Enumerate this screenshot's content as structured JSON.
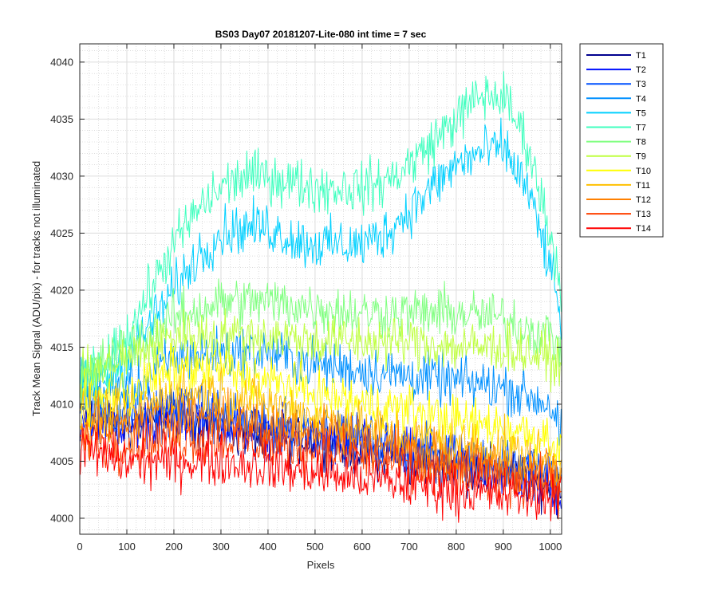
{
  "chart_data": {
    "type": "line",
    "title": "BS03 Day07 20181207-Lite-080 int time = 7 sec",
    "xlabel": "Pixels",
    "ylabel": "Track Mean Signal (ADU/pix) - for tracks not illuminated",
    "xlim": [
      0,
      1024
    ],
    "ylim": [
      3998.6,
      4041.6
    ],
    "xticks": [
      0,
      100,
      200,
      300,
      400,
      500,
      600,
      700,
      800,
      900,
      1000
    ],
    "yticks": [
      4000,
      4005,
      4010,
      4015,
      4020,
      4025,
      4030,
      4035,
      4040
    ],
    "grid": true,
    "minor_grid": true,
    "legend_position": "outside-right",
    "series": [
      {
        "name": "T1",
        "color": "#00008f",
        "x": [
          0,
          100,
          200,
          300,
          400,
          500,
          600,
          700,
          800,
          900,
          1000,
          1024
        ],
        "values": [
          4009,
          4008,
          4009,
          4008,
          4007,
          4007,
          4006,
          4005,
          4004.5,
          4004,
          4003,
          4002
        ]
      },
      {
        "name": "T2",
        "color": "#0010ff",
        "x": [
          0,
          100,
          200,
          300,
          400,
          500,
          600,
          700,
          800,
          900,
          1000,
          1024
        ],
        "values": [
          4009,
          4008,
          4009,
          4008.5,
          4007.5,
          4007,
          4006.5,
          4005.5,
          4005,
          4004,
          4003,
          4002
        ]
      },
      {
        "name": "T3",
        "color": "#0050ff",
        "x": [
          0,
          100,
          200,
          300,
          400,
          500,
          600,
          700,
          800,
          900,
          1000,
          1024
        ],
        "values": [
          4010,
          4009,
          4010,
          4009,
          4008,
          4008,
          4007,
          4006,
          4005.5,
          4005,
          4004,
          4003
        ]
      },
      {
        "name": "T4",
        "color": "#0090ff",
        "x": [
          0,
          100,
          200,
          300,
          400,
          500,
          600,
          700,
          800,
          900,
          1000,
          1024
        ],
        "values": [
          4011,
          4011,
          4014,
          4014.5,
          4014.5,
          4013.5,
          4013,
          4012.5,
          4012,
          4011.5,
          4010,
          4007
        ]
      },
      {
        "name": "T5",
        "color": "#00d0ff",
        "x": [
          0,
          50,
          100,
          150,
          200,
          250,
          300,
          350,
          400,
          450,
          500,
          550,
          600,
          650,
          700,
          750,
          800,
          850,
          900,
          950,
          1000,
          1024
        ],
        "values": [
          4012,
          4012,
          4014,
          4017,
          4020,
          4023,
          4025,
          4025.5,
          4025.5,
          4024.5,
          4024,
          4024,
          4024,
          4025,
          4027,
          4029,
          4031,
          4032,
          4032.5,
          4029,
          4022,
          4017
        ]
      },
      {
        "name": "T7",
        "color": "#40ffbf",
        "x": [
          0,
          50,
          100,
          150,
          200,
          250,
          300,
          350,
          400,
          450,
          500,
          550,
          600,
          650,
          700,
          750,
          800,
          850,
          900,
          950,
          1000,
          1024
        ],
        "values": [
          4012,
          4013,
          4016,
          4020,
          4024,
          4027,
          4029,
          4030,
          4030,
          4029.5,
          4029,
          4029,
          4029,
          4029.5,
          4031,
          4033,
          4035,
          4037,
          4037,
          4033,
          4025,
          4020
        ]
      },
      {
        "name": "T8",
        "color": "#80ff80",
        "x": [
          0,
          100,
          200,
          300,
          400,
          500,
          600,
          700,
          800,
          900,
          1000,
          1024
        ],
        "values": [
          4012,
          4015,
          4017.5,
          4019,
          4019,
          4018.5,
          4018,
          4018,
          4018,
          4017.5,
          4016,
          4015
        ]
      },
      {
        "name": "T9",
        "color": "#bfff40",
        "x": [
          0,
          100,
          200,
          300,
          400,
          500,
          600,
          700,
          800,
          900,
          1000,
          1024
        ],
        "values": [
          4012,
          4014,
          4016,
          4016,
          4016,
          4015.5,
          4015.5,
          4015.5,
          4015,
          4015,
          4014,
          4013
        ]
      },
      {
        "name": "T10",
        "color": "#ffff00",
        "x": [
          0,
          100,
          200,
          300,
          400,
          500,
          600,
          700,
          800,
          900,
          1000,
          1024
        ],
        "values": [
          4010,
          4011,
          4013,
          4013,
          4012,
          4011,
          4010,
          4009.5,
          4008.5,
          4008,
          4007,
          4006
        ]
      },
      {
        "name": "T11",
        "color": "#ffc000",
        "x": [
          0,
          100,
          200,
          300,
          400,
          500,
          600,
          700,
          800,
          900,
          1000,
          1024
        ],
        "values": [
          4009,
          4009,
          4011,
          4011,
          4010,
          4009,
          4008,
          4007,
          4006.5,
          4006,
          4005,
          4004
        ]
      },
      {
        "name": "T12",
        "color": "#ff8000",
        "x": [
          0,
          100,
          200,
          300,
          400,
          500,
          600,
          700,
          800,
          900,
          1000,
          1024
        ],
        "values": [
          4008,
          4008,
          4009,
          4009,
          4008,
          4008,
          4007,
          4006,
          4005,
          4004.5,
          4004,
          4003
        ]
      },
      {
        "name": "T13",
        "color": "#ff4000",
        "x": [
          0,
          100,
          200,
          300,
          400,
          500,
          600,
          700,
          800,
          900,
          1000,
          1024
        ],
        "values": [
          4007,
          4006.5,
          4007,
          4007,
          4006.5,
          4006,
          4005.5,
          4004.5,
          4004,
          4003.5,
          4003,
          4002.5
        ]
      },
      {
        "name": "T14",
        "color": "#ff0000",
        "x": [
          0,
          100,
          200,
          300,
          400,
          500,
          600,
          700,
          800,
          900,
          1000,
          1024
        ],
        "values": [
          4006,
          4005,
          4005,
          4005,
          4004.5,
          4004,
          4003.5,
          4003,
          4002.5,
          4002,
          4002,
          4002
        ]
      }
    ]
  }
}
